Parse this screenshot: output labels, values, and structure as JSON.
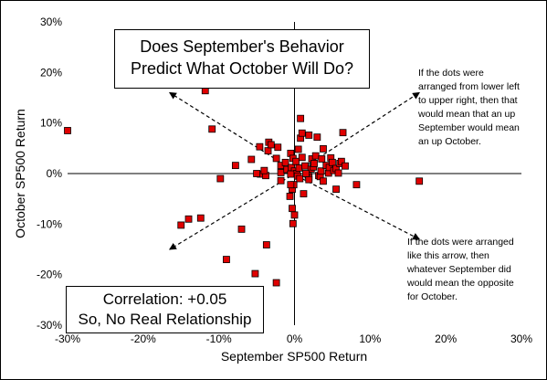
{
  "title_box": {
    "line1": "Does September's Behavior",
    "line2": "Predict What October Will Do?"
  },
  "correlation_box": {
    "line1": "Correlation: +0.05",
    "line2": "So, No Real Relationship"
  },
  "annotations": {
    "upper_right": [
      "If the dots were",
      "arranged from lower left",
      "to upper right, then that",
      "would mean that an up",
      "September would mean",
      "an up October."
    ],
    "lower_right": [
      "If the dots were arranged",
      "like this arrow, then",
      "whatever September did",
      "would mean the opposite",
      "for October."
    ]
  },
  "colors": {
    "marker_fill": "#e00000",
    "marker_stroke": "#000000",
    "axis": "#000000",
    "arrow": "#000000"
  },
  "chart_data": {
    "type": "scatter",
    "title": "",
    "xlabel": "September SP500 Return",
    "ylabel": "October SP500 Return",
    "xlim": [
      -0.3,
      0.3
    ],
    "ylim": [
      -0.3,
      0.3
    ],
    "x_ticks": [
      "-30%",
      "-20%",
      "-10%",
      "0%",
      "10%",
      "20%",
      "30%"
    ],
    "y_ticks": [
      "30%",
      "20%",
      "10%",
      "0%",
      "-10%",
      "-20%",
      "-30%"
    ],
    "grid": false,
    "legend": "none",
    "correlation": 0.05,
    "points": [
      [
        -0.3,
        0.085
      ],
      [
        -0.118,
        0.164
      ],
      [
        -0.109,
        0.088
      ],
      [
        -0.15,
        -0.102
      ],
      [
        -0.14,
        -0.09
      ],
      [
        -0.124,
        -0.088
      ],
      [
        -0.09,
        -0.17
      ],
      [
        -0.07,
        -0.11
      ],
      [
        -0.052,
        -0.198
      ],
      [
        -0.037,
        -0.141
      ],
      [
        -0.024,
        -0.216
      ],
      [
        -0.098,
        -0.01
      ],
      [
        -0.078,
        0.016
      ],
      [
        -0.057,
        0.028
      ],
      [
        -0.046,
        0.053
      ],
      [
        -0.035,
        0.045
      ],
      [
        -0.034,
        0.062
      ],
      [
        -0.031,
        0.057
      ],
      [
        -0.045,
        -0.001
      ],
      [
        -0.038,
        -0.004
      ],
      [
        -0.05,
        0.0
      ],
      [
        -0.04,
        0.006
      ],
      [
        -0.022,
        0.052
      ],
      [
        -0.024,
        0.03
      ],
      [
        -0.018,
        0.016
      ],
      [
        -0.018,
        0.002
      ],
      [
        -0.018,
        -0.014
      ],
      [
        -0.012,
        0.022
      ],
      [
        -0.01,
        0.008
      ],
      [
        -0.005,
        0.04
      ],
      [
        -0.004,
        0.012
      ],
      [
        -0.002,
        0.03
      ],
      [
        0.0,
        0.005
      ],
      [
        0.002,
        0.024
      ],
      [
        0.003,
        0.0
      ],
      [
        0.005,
        0.048
      ],
      [
        0.006,
        0.011
      ],
      [
        0.004,
        -0.005
      ],
      [
        0.008,
        0.07
      ],
      [
        0.01,
        0.08
      ],
      [
        0.014,
        0.015
      ],
      [
        0.008,
        0.109
      ],
      [
        0.01,
        0.032
      ],
      [
        0.019,
        0.076
      ],
      [
        0.023,
        0.029
      ],
      [
        0.018,
        -0.003
      ],
      [
        0.019,
        -0.008
      ],
      [
        0.019,
        -0.012
      ],
      [
        0.022,
        0.009
      ],
      [
        0.025,
        0.013
      ],
      [
        0.026,
        0.02
      ],
      [
        0.028,
        0.035
      ],
      [
        0.03,
        0.072
      ],
      [
        0.032,
        -0.004
      ],
      [
        0.034,
        -0.006
      ],
      [
        0.035,
        0.005
      ],
      [
        0.036,
        0.029
      ],
      [
        0.038,
        0.049
      ],
      [
        0.038,
        -0.015
      ],
      [
        0.042,
        0.016
      ],
      [
        0.045,
        0.001
      ],
      [
        0.046,
        0.012
      ],
      [
        0.048,
        0.031
      ],
      [
        0.05,
        0.022
      ],
      [
        0.052,
        0.006
      ],
      [
        0.055,
        0.01
      ],
      [
        0.055,
        -0.031
      ],
      [
        0.058,
        0.001
      ],
      [
        0.06,
        0.02
      ],
      [
        0.062,
        0.024
      ],
      [
        0.064,
        0.081
      ],
      [
        0.067,
        0.015
      ],
      [
        0.082,
        -0.022
      ],
      [
        0.165,
        -0.015
      ],
      [
        -0.003,
        -0.031
      ],
      [
        -0.001,
        -0.022
      ],
      [
        -0.003,
        -0.069
      ],
      [
        -0.002,
        -0.099
      ],
      [
        0.0,
        -0.082
      ],
      [
        -0.006,
        -0.045
      ],
      [
        0.012,
        -0.04
      ],
      [
        0.007,
        -0.01
      ],
      [
        -0.005,
        -0.001
      ],
      [
        -0.005,
        -0.022
      ],
      [
        0.015,
        0.0
      ]
    ]
  }
}
